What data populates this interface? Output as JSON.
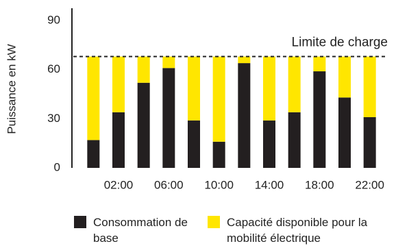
{
  "chart_data": {
    "type": "stacked_bar",
    "y_label": "Puissance en kW",
    "categories": [
      null,
      "02:00",
      null,
      "06:00",
      null,
      "10:00",
      null,
      "14:00",
      null,
      "18:00",
      null,
      "22:00"
    ],
    "series": [
      {
        "name": "Consommation de base",
        "color": "#231f20",
        "values": [
          17,
          34,
          52,
          61,
          29,
          16,
          64,
          29,
          34,
          59,
          43,
          31
        ]
      },
      {
        "name": "Capacité disponible pour la mobilité électrique",
        "color": "#ffe600",
        "values": [
          51,
          34,
          16,
          7,
          39,
          52,
          4,
          39,
          34,
          9,
          25,
          37
        ]
      }
    ],
    "ylim": [
      0,
      90
    ],
    "yticks": [
      0,
      30,
      60,
      90
    ],
    "limit": {
      "label": "Limite de charge",
      "value": 68
    }
  }
}
